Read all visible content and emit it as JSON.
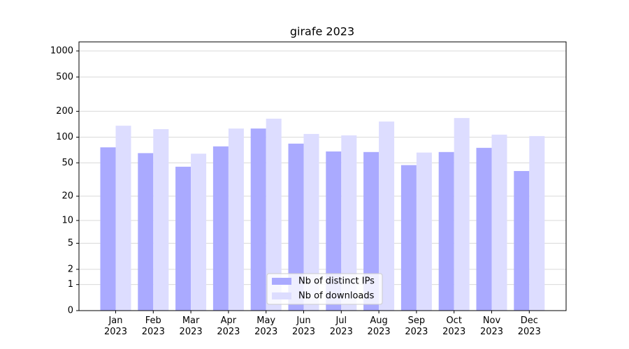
{
  "chart_data": {
    "type": "bar",
    "title": "girafe 2023",
    "categories": [
      "Jan 2023",
      "Feb 2023",
      "Mar 2023",
      "Apr 2023",
      "May 2023",
      "Jun 2023",
      "Jul 2023",
      "Aug 2023",
      "Sep 2023",
      "Oct 2023",
      "Nov 2023",
      "Dec 2023"
    ],
    "series": [
      {
        "name": "Nb of distinct IPs",
        "color": "#aaaaff",
        "values": [
          76,
          65,
          45,
          78,
          126,
          84,
          68,
          67,
          47,
          67,
          75,
          40
        ]
      },
      {
        "name": "Nb of downloads",
        "color": "#ddddff",
        "values": [
          136,
          124,
          64,
          126,
          164,
          109,
          105,
          152,
          66,
          167,
          107,
          103
        ]
      }
    ],
    "yscale": "log1p",
    "ylim": [
      0,
      1273
    ],
    "yticks": [
      0,
      1,
      2,
      5,
      10,
      20,
      50,
      100,
      200,
      500,
      1000
    ],
    "grid": true,
    "legend": "lower center"
  }
}
